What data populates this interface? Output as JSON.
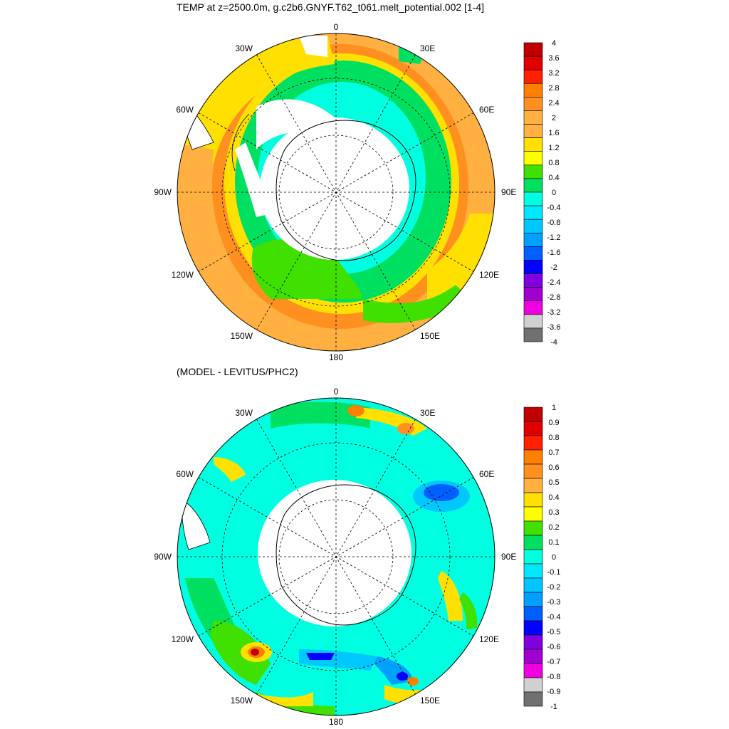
{
  "panel_top": {
    "title": "TEMP at z=2500.0m, g.c2b6.GNYF.T62_t061.melt_potential.002 [1-4]",
    "longitude_labels": [
      "0",
      "30E",
      "60E",
      "90E",
      "120E",
      "150E",
      "180",
      "150W",
      "120W",
      "90W",
      "60W",
      "30W"
    ],
    "colorbar": {
      "labels": [
        "4",
        "3.6",
        "3.2",
        "2.8",
        "2.4",
        "2",
        "1.6",
        "1.2",
        "0.8",
        "0.4",
        "0",
        "-0.4",
        "-0.8",
        "-1.2",
        "-1.6",
        "-2",
        "-2.4",
        "-2.8",
        "-3.2",
        "-3.6",
        "-4"
      ],
      "colors": [
        "#c00000",
        "#e00000",
        "#ff2000",
        "#ff8000",
        "#ff9020",
        "#ffb040",
        "#ffb040",
        "#ffe000",
        "#ffff00",
        "#40e000",
        "#00e060",
        "#00ffe0",
        "#00e8ff",
        "#00c8ff",
        "#00a0ff",
        "#0060ff",
        "#0000ff",
        "#8000e0",
        "#a000d0",
        "#f000e0",
        "#d0d0d0",
        "#707070"
      ]
    }
  },
  "panel_bottom": {
    "title": "(MODEL - LEVITUS/PHC2)",
    "longitude_labels": [
      "0",
      "30E",
      "60E",
      "90E",
      "120E",
      "150E",
      "180",
      "150W",
      "120W",
      "90W",
      "60W",
      "30W"
    ],
    "colorbar": {
      "labels": [
        "1",
        "0.9",
        "0.8",
        "0.7",
        "0.6",
        "0.5",
        "0.4",
        "0.3",
        "0.2",
        "0.1",
        "0",
        "-0.1",
        "-0.2",
        "-0.3",
        "-0.4",
        "-0.5",
        "-0.6",
        "-0.7",
        "-0.8",
        "-0.9",
        "-1"
      ],
      "colors": [
        "#c00000",
        "#e00000",
        "#ff2000",
        "#ff8000",
        "#ff9020",
        "#ffb040",
        "#ffe000",
        "#ffff00",
        "#40e000",
        "#00e060",
        "#00ffe0",
        "#00e8ff",
        "#00c8ff",
        "#00a0ff",
        "#0060ff",
        "#0000ff",
        "#8000e0",
        "#a000d0",
        "#f000e0",
        "#d0d0d0",
        "#707070"
      ]
    }
  }
}
